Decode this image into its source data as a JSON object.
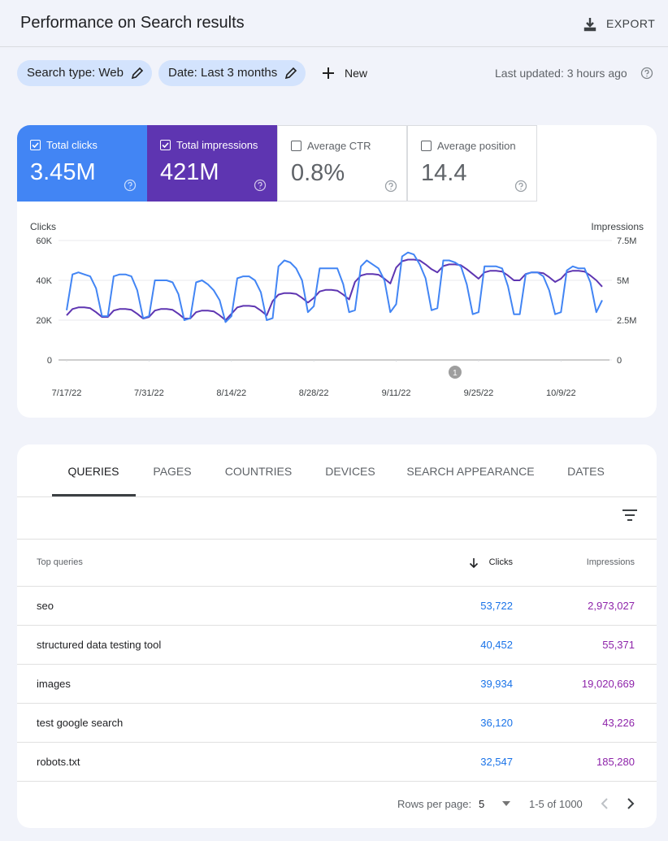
{
  "header": {
    "title": "Performance on Search results",
    "export": "EXPORT"
  },
  "filters": {
    "chips": [
      "Search type: Web",
      "Date: Last 3 months"
    ],
    "new": "New",
    "last_updated": "Last updated: 3 hours ago"
  },
  "metrics": [
    {
      "label": "Total clicks",
      "value": "3.45M",
      "checked": true,
      "color": "#4285f4"
    },
    {
      "label": "Total impressions",
      "value": "421M",
      "checked": true,
      "color": "#5e35b1"
    },
    {
      "label": "Average CTR",
      "value": "0.8%",
      "checked": false,
      "color": "#ffffff"
    },
    {
      "label": "Average position",
      "value": "14.4",
      "checked": false,
      "color": "#ffffff"
    }
  ],
  "chart_data": {
    "type": "line",
    "y_label": "Clicks",
    "y2_label": "Impressions",
    "grid": true,
    "x": [
      "7/17/22",
      "7/18/22",
      "7/19/22",
      "7/20/22",
      "7/21/22",
      "7/22/22",
      "7/23/22",
      "7/24/22",
      "7/25/22",
      "7/26/22",
      "7/27/22",
      "7/28/22",
      "7/29/22",
      "7/30/22",
      "7/31/22",
      "8/1/22",
      "8/2/22",
      "8/3/22",
      "8/4/22",
      "8/5/22",
      "8/6/22",
      "8/7/22",
      "8/8/22",
      "8/9/22",
      "8/10/22",
      "8/11/22",
      "8/12/22",
      "8/13/22",
      "8/14/22",
      "8/15/22",
      "8/16/22",
      "8/17/22",
      "8/18/22",
      "8/19/22",
      "8/20/22",
      "8/21/22",
      "8/22/22",
      "8/23/22",
      "8/24/22",
      "8/25/22",
      "8/26/22",
      "8/27/22",
      "8/28/22",
      "8/29/22",
      "8/30/22",
      "8/31/22",
      "9/1/22",
      "9/2/22",
      "9/3/22",
      "9/4/22",
      "9/5/22",
      "9/6/22",
      "9/7/22",
      "9/8/22",
      "9/9/22",
      "9/10/22",
      "9/11/22",
      "9/12/22",
      "9/13/22",
      "9/14/22",
      "9/15/22",
      "9/16/22",
      "9/17/22",
      "9/18/22",
      "9/19/22",
      "9/20/22",
      "9/21/22",
      "9/22/22",
      "9/23/22",
      "9/24/22",
      "9/25/22",
      "9/26/22",
      "9/27/22",
      "9/28/22",
      "9/29/22",
      "9/30/22",
      "10/1/22",
      "10/2/22",
      "10/3/22",
      "10/4/22",
      "10/5/22",
      "10/6/22",
      "10/7/22",
      "10/8/22",
      "10/9/22",
      "10/10/22",
      "10/11/22",
      "10/12/22",
      "10/13/22",
      "10/14/22",
      "10/15/22",
      "10/16/22"
    ],
    "xticks": [
      "7/17/22",
      "7/31/22",
      "8/14/22",
      "8/28/22",
      "9/11/22",
      "9/25/22",
      "10/9/22"
    ],
    "ylim": [
      0,
      60000
    ],
    "yticks": [
      {
        "value": 0,
        "label": "0"
      },
      {
        "value": 20000,
        "label": "20K"
      },
      {
        "value": 40000,
        "label": "40K"
      },
      {
        "value": 60000,
        "label": "60K"
      }
    ],
    "y2lim": [
      0,
      7500000
    ],
    "y2ticks": [
      {
        "value": 0,
        "label": "0"
      },
      {
        "value": 2500000,
        "label": "2.5M"
      },
      {
        "value": 5000000,
        "label": "5M"
      },
      {
        "value": 7500000,
        "label": "7.5M"
      }
    ],
    "annotations": [
      {
        "x": "9/21/22",
        "label": "1"
      }
    ],
    "series": [
      {
        "name": "Clicks",
        "color": "#4285f4",
        "values": [
          25000,
          43000,
          44000,
          43000,
          42000,
          36000,
          22000,
          22000,
          42000,
          43000,
          43000,
          42000,
          35000,
          21000,
          22000,
          40000,
          40000,
          40000,
          39000,
          33000,
          20000,
          21000,
          39000,
          40000,
          38000,
          35000,
          30000,
          19000,
          22000,
          41000,
          42000,
          42000,
          40000,
          34000,
          20000,
          21000,
          47000,
          50000,
          49000,
          46000,
          40000,
          24000,
          27000,
          46000,
          46000,
          46000,
          46000,
          38000,
          24000,
          25000,
          47000,
          50000,
          48000,
          46000,
          40000,
          24000,
          28000,
          52000,
          54000,
          53000,
          48000,
          41000,
          25000,
          26000,
          50000,
          50000,
          49000,
          47000,
          38000,
          23000,
          24000,
          47000,
          47000,
          47000,
          46000,
          37000,
          23000,
          23000,
          43000,
          44000,
          44000,
          42000,
          35000,
          23000,
          24000,
          45000,
          47000,
          46000,
          46000,
          39000,
          24000,
          30000
        ]
      },
      {
        "name": "Impressions",
        "color": "#5e35b1",
        "axis": "y2",
        "values": [
          2800000,
          3200000,
          3300000,
          3300000,
          3250000,
          3000000,
          2700000,
          2700000,
          3100000,
          3200000,
          3200000,
          3150000,
          2900000,
          2600000,
          2700000,
          3100000,
          3200000,
          3200000,
          3150000,
          2900000,
          2600000,
          2600000,
          3000000,
          3100000,
          3100000,
          3050000,
          2800000,
          2500000,
          2900000,
          3300000,
          3400000,
          3400000,
          3350000,
          3100000,
          2800000,
          3700000,
          4100000,
          4200000,
          4200000,
          4150000,
          3900000,
          3600000,
          3900000,
          4300000,
          4400000,
          4400000,
          4350000,
          4100000,
          3800000,
          4900000,
          5300000,
          5400000,
          5400000,
          5350000,
          5100000,
          4800000,
          5800000,
          6200000,
          6300000,
          6300000,
          6250000,
          6000000,
          5700000,
          5500000,
          5900000,
          6000000,
          6000000,
          5950000,
          5700000,
          5400000,
          5100000,
          5500000,
          5600000,
          5600000,
          5550000,
          5300000,
          5000000,
          5000000,
          5400000,
          5500000,
          5500000,
          5450000,
          5200000,
          4900000,
          5100000,
          5500000,
          5600000,
          5600000,
          5550000,
          5300000,
          5000000,
          4600000
        ]
      }
    ]
  },
  "tabs": [
    "QUERIES",
    "PAGES",
    "COUNTRIES",
    "DEVICES",
    "SEARCH APPEARANCE",
    "DATES"
  ],
  "table": {
    "columns": [
      "Top queries",
      "Clicks",
      "Impressions"
    ],
    "rows": [
      [
        "seo",
        "53,722",
        "2,973,027"
      ],
      [
        "structured data testing tool",
        "40,452",
        "55,371"
      ],
      [
        "images",
        "39,934",
        "19,020,669"
      ],
      [
        "test google search",
        "36,120",
        "43,226"
      ],
      [
        "robots.txt",
        "32,547",
        "185,280"
      ]
    ]
  },
  "pagination": {
    "rows_per_page_label": "Rows per page:",
    "rows_per_page": "5",
    "range": "1-5 of 1000"
  }
}
